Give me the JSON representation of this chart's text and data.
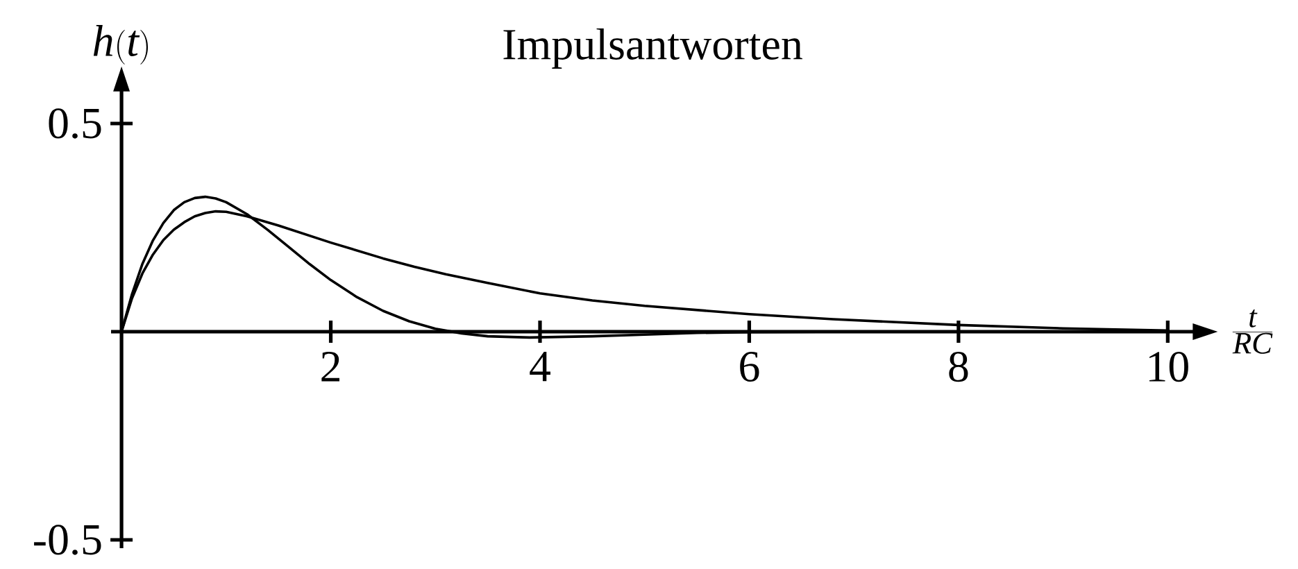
{
  "chart_data": {
    "type": "line",
    "title": "Impulsantworten",
    "xlabel": "\\frac{t}{RC}",
    "ylabel": "h(t)",
    "xlim": [
      -0.1,
      10.25
    ],
    "ylim": [
      -0.52,
      0.58
    ],
    "xticks": [
      2,
      4,
      6,
      8,
      10
    ],
    "yticks": [
      -0.5,
      0.5
    ],
    "marker": "none",
    "line_style": "solid",
    "series": [
      {
        "color": "#000000",
        "x": [
          0,
          0.1,
          0.2,
          0.3,
          0.4,
          0.5,
          0.6,
          0.7,
          0.8,
          0.9,
          1.0,
          1.2,
          1.4,
          1.6,
          1.8,
          2.0,
          2.25,
          2.5,
          2.75,
          3.0,
          3.25,
          3.5,
          3.9,
          4.5,
          5.0,
          5.5,
          6.0,
          7.0
        ],
        "values": [
          0,
          0.09,
          0.163,
          0.219,
          0.261,
          0.292,
          0.311,
          0.321,
          0.324,
          0.32,
          0.311,
          0.282,
          0.244,
          0.203,
          0.162,
          0.124,
          0.083,
          0.05,
          0.025,
          0.007,
          -0.004,
          -0.011,
          -0.014,
          -0.011,
          -0.007,
          -0.003,
          -0.001,
          0
        ]
      },
      {
        "color": "#000000",
        "x": [
          0,
          0.1,
          0.2,
          0.3,
          0.4,
          0.5,
          0.6,
          0.7,
          0.8,
          0.9,
          1.0,
          1.2,
          1.5,
          2.0,
          2.5,
          2.8,
          3.1,
          3.5,
          4.0,
          4.5,
          5.0,
          6.0,
          6.8,
          8.0,
          9.0,
          10.0
        ],
        "values": [
          0,
          0.08,
          0.14,
          0.185,
          0.22,
          0.245,
          0.263,
          0.277,
          0.285,
          0.289,
          0.288,
          0.277,
          0.255,
          0.214,
          0.176,
          0.156,
          0.138,
          0.117,
          0.092,
          0.075,
          0.062,
          0.042,
          0.03,
          0.016,
          0.008,
          0.003
        ]
      }
    ]
  }
}
